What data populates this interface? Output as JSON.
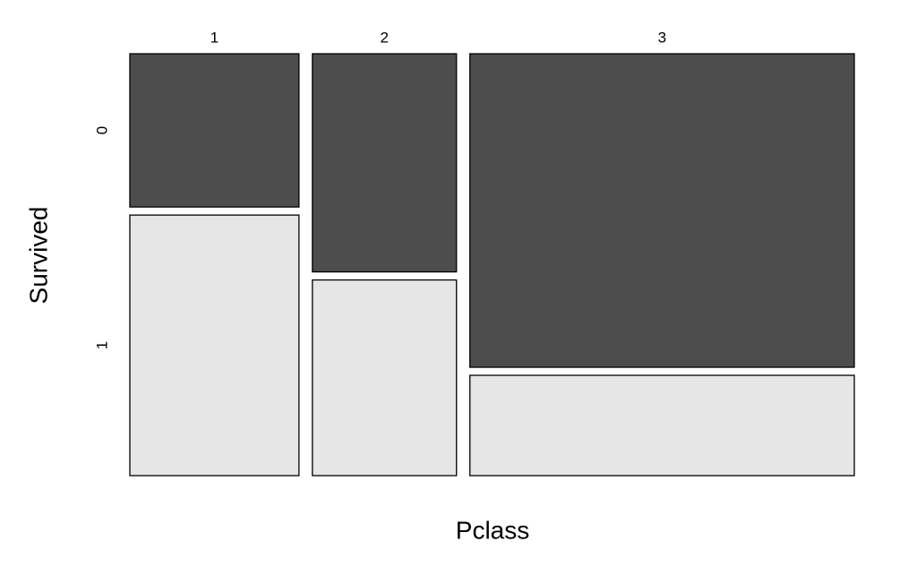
{
  "chart_data": {
    "type": "mosaic",
    "xlabel": "Pclass",
    "ylabel": "Survived",
    "categories": [
      "1",
      "2",
      "3"
    ],
    "series": [
      {
        "name": "0",
        "color": "#4d4d4d",
        "values": [
          80,
          97,
          372
        ]
      },
      {
        "name": "1",
        "color": "#e6e6e6",
        "values": [
          136,
          87,
          119
        ]
      }
    ]
  }
}
